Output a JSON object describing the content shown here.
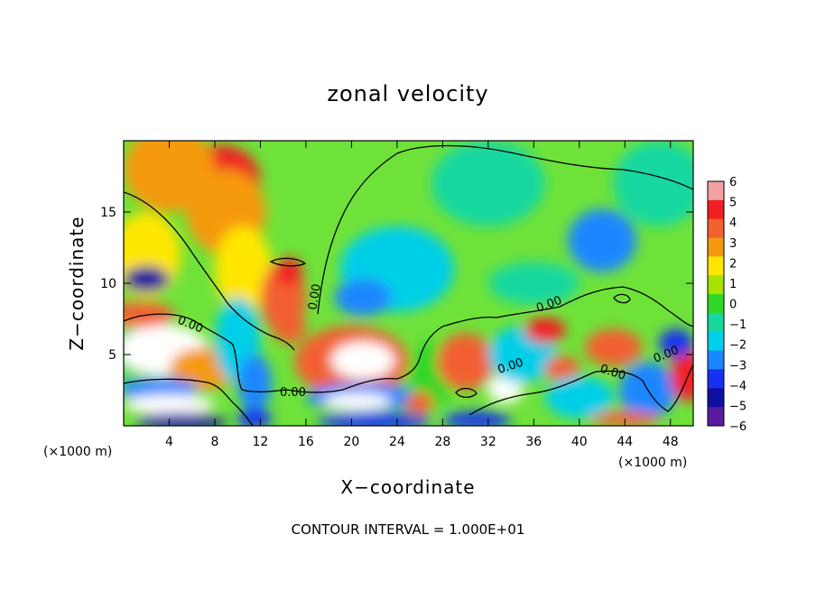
{
  "chart_data": {
    "type": "heatmap",
    "title": "zonal velocity",
    "xlabel": "X−coordinate",
    "ylabel": "Z−coordinate",
    "x_unit_left": "(×1000 m)",
    "x_unit_right": "(×1000 m)",
    "footnote": "CONTOUR INTERVAL = 1.000E+01",
    "xlim": [
      0,
      50
    ],
    "ylim": [
      0,
      20
    ],
    "x_ticks": [
      4,
      8,
      12,
      16,
      20,
      24,
      28,
      32,
      36,
      40,
      44,
      48
    ],
    "x_tick_labels": [
      "4",
      "8",
      "12",
      "16",
      "20",
      "24",
      "28",
      "32",
      "36",
      "40",
      "44",
      "48"
    ],
    "y_ticks": [
      5,
      10,
      15
    ],
    "y_tick_labels": [
      "5",
      "10",
      "15"
    ],
    "colorbar": {
      "levels": [
        6,
        5,
        4,
        3,
        2,
        1,
        0,
        -1,
        -2,
        -3,
        -4,
        -5,
        -6
      ],
      "labels": [
        "6",
        "5",
        "4",
        "3",
        "2",
        "1",
        "0",
        "−1",
        "−2",
        "−3",
        "−4",
        "−5",
        "−6"
      ],
      "colors": [
        "#f4a0a0",
        "#f02020",
        "#f26030",
        "#f59a10",
        "#ffe600",
        "#a8e200",
        "#2fd82a",
        "#18d8a0",
        "#00cfe8",
        "#1a86ff",
        "#1830f0",
        "#1010a0",
        "#5a1aa0"
      ]
    },
    "contour_labels": [
      "0.00",
      "0.00",
      "0.00",
      "0.00",
      "0.00",
      "0.00",
      "0.00"
    ],
    "blobs": [
      {
        "x": 8.5,
        "y": 17.2,
        "rx": 3.5,
        "ry": 2.5,
        "v": 5.0
      },
      {
        "x": 9.0,
        "y": 15.0,
        "rx": 3.5,
        "ry": 3.0,
        "v": 3.0
      },
      {
        "x": 4.0,
        "y": 18.0,
        "rx": 4.0,
        "ry": 3.0,
        "v": 2.5
      },
      {
        "x": 2.0,
        "y": 12.0,
        "rx": 3.0,
        "ry": 3.0,
        "v": 1.5
      },
      {
        "x": 2.0,
        "y": 10.3,
        "rx": 2.0,
        "ry": 0.9,
        "v": -5.0
      },
      {
        "x": 10.5,
        "y": 11.0,
        "rx": 2.5,
        "ry": 3.0,
        "v": 1.5
      },
      {
        "x": 14.0,
        "y": 9.0,
        "rx": 2.0,
        "ry": 2.5,
        "v": 3.5
      },
      {
        "x": 14.5,
        "y": 10.8,
        "rx": 1.2,
        "ry": 1.0,
        "v": 5.0
      },
      {
        "x": 24.0,
        "y": 11.0,
        "rx": 5.0,
        "ry": 3.0,
        "v": -2.3
      },
      {
        "x": 21.0,
        "y": 9.0,
        "rx": 2.5,
        "ry": 1.3,
        "v": -3.5
      },
      {
        "x": 42.0,
        "y": 13.0,
        "rx": 3.0,
        "ry": 2.2,
        "v": -3.0
      },
      {
        "x": 47.0,
        "y": 17.0,
        "rx": 4.0,
        "ry": 3.0,
        "v": -1.0
      },
      {
        "x": 32.0,
        "y": 17.0,
        "rx": 5.0,
        "ry": 3.0,
        "v": -0.7
      },
      {
        "x": 36.0,
        "y": 10.0,
        "rx": 4.0,
        "ry": 1.5,
        "v": -1.2
      },
      {
        "x": 0.0,
        "y": 5.5,
        "rx": 3.0,
        "ry": 2.0,
        "v": 0.0
      },
      {
        "x": 3.5,
        "y": 5.3,
        "rx": 4.0,
        "ry": 1.8,
        "v": 6.5
      },
      {
        "x": 1.5,
        "y": 7.8,
        "rx": 3.0,
        "ry": 0.9,
        "v": 3.5
      },
      {
        "x": 7.0,
        "y": 4.0,
        "rx": 3.0,
        "ry": 1.5,
        "v": 3.0
      },
      {
        "x": 3.0,
        "y": 2.6,
        "rx": 3.5,
        "ry": 0.8,
        "v": -3.5
      },
      {
        "x": 4.0,
        "y": 1.5,
        "rx": 4.0,
        "ry": 0.7,
        "v": 6.5
      },
      {
        "x": 5.0,
        "y": 0.3,
        "rx": 4.0,
        "ry": 0.6,
        "v": -5.0
      },
      {
        "x": 10.0,
        "y": 6.0,
        "rx": 2.0,
        "ry": 3.0,
        "v": -2.5
      },
      {
        "x": 11.5,
        "y": 3.0,
        "rx": 1.5,
        "ry": 2.0,
        "v": -3.5
      },
      {
        "x": 11.5,
        "y": 0.5,
        "rx": 1.5,
        "ry": 0.7,
        "v": -4.5
      },
      {
        "x": 14.5,
        "y": 7.0,
        "rx": 1.5,
        "ry": 1.2,
        "v": 3.5
      },
      {
        "x": 20.0,
        "y": 4.5,
        "rx": 5.0,
        "ry": 2.5,
        "v": 3.5
      },
      {
        "x": 21.0,
        "y": 4.6,
        "rx": 2.8,
        "ry": 1.3,
        "v": 6.5
      },
      {
        "x": 21.0,
        "y": 2.0,
        "rx": 5.0,
        "ry": 1.0,
        "v": -3.5
      },
      {
        "x": 20.5,
        "y": 1.7,
        "rx": 3.0,
        "ry": 0.6,
        "v": 6.5
      },
      {
        "x": 22.0,
        "y": 0.3,
        "rx": 5.0,
        "ry": 0.6,
        "v": -4.5
      },
      {
        "x": 27.0,
        "y": 3.5,
        "rx": 2.0,
        "ry": 2.5,
        "v": -0.5
      },
      {
        "x": 26.0,
        "y": 1.6,
        "rx": 1.2,
        "ry": 0.8,
        "v": 4.0
      },
      {
        "x": 30.0,
        "y": 4.5,
        "rx": 2.5,
        "ry": 2.0,
        "v": 3.5
      },
      {
        "x": 33.5,
        "y": 2.6,
        "rx": 1.6,
        "ry": 1.0,
        "v": 6.5
      },
      {
        "x": 35.0,
        "y": 5.0,
        "rx": 3.0,
        "ry": 2.0,
        "v": -2.0
      },
      {
        "x": 37.0,
        "y": 6.7,
        "rx": 1.8,
        "ry": 0.9,
        "v": 5.0
      },
      {
        "x": 38.5,
        "y": 4.0,
        "rx": 1.5,
        "ry": 0.9,
        "v": 4.0
      },
      {
        "x": 31.0,
        "y": 0.4,
        "rx": 3.0,
        "ry": 0.6,
        "v": -4.5
      },
      {
        "x": 40.0,
        "y": 2.0,
        "rx": 3.0,
        "ry": 1.5,
        "v": -2.5
      },
      {
        "x": 43.0,
        "y": 5.5,
        "rx": 2.5,
        "ry": 1.3,
        "v": 4.0
      },
      {
        "x": 46.0,
        "y": 2.5,
        "rx": 2.5,
        "ry": 2.0,
        "v": -3.5
      },
      {
        "x": 49.5,
        "y": 3.5,
        "rx": 1.5,
        "ry": 1.8,
        "v": 5.0
      },
      {
        "x": 48.5,
        "y": 5.8,
        "rx": 1.5,
        "ry": 1.0,
        "v": -4.5
      },
      {
        "x": 44.0,
        "y": 0.5,
        "rx": 3.0,
        "ry": 0.5,
        "v": 4.0
      }
    ]
  }
}
